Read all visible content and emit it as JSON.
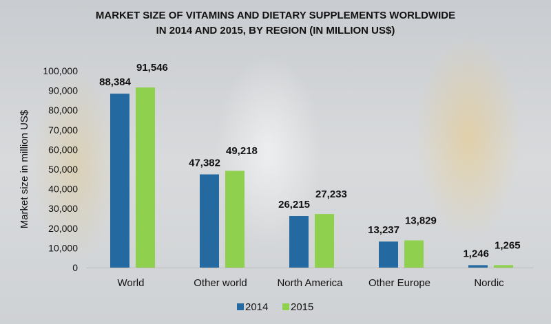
{
  "chart_data": {
    "type": "bar",
    "title_lines": [
      "MARKET SIZE OF VITAMINS AND DIETARY SUPPLEMENTS WORLDWIDE",
      "IN 2014 AND 2015, BY REGION (IN MILLION US$)"
    ],
    "xlabel": "",
    "ylabel": "Market size in million US$",
    "ylim": [
      0,
      100000
    ],
    "yticks": [
      "0",
      "10,000",
      "20,000",
      "30,000",
      "40,000",
      "50,000",
      "60,000",
      "70,000",
      "80,000",
      "90,000",
      "100,000"
    ],
    "categories": [
      "World",
      "Other world",
      "North America",
      "Other Europe",
      "Nordic"
    ],
    "series": [
      {
        "name": "2014",
        "color": "#2469A0",
        "values": [
          88384,
          47382,
          26215,
          13237,
          1246
        ],
        "labels": [
          "88,384",
          "47,382",
          "26,215",
          "13,237",
          "1,246"
        ]
      },
      {
        "name": "2015",
        "color": "#8FD14F",
        "values": [
          91546,
          49218,
          27233,
          13829,
          1265
        ],
        "labels": [
          "91,546",
          "49,218",
          "27,233",
          "13,829",
          "1,265"
        ]
      }
    ],
    "legend_position": "bottom",
    "grid": false
  }
}
